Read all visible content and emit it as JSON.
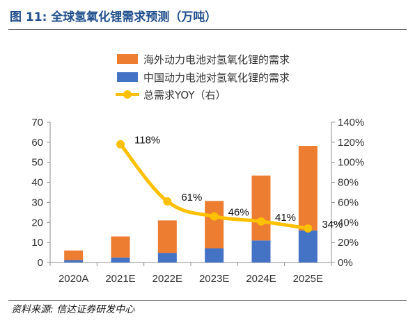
{
  "header": {
    "title": "图 11:  全球氢氧化锂需求预测（万吨）"
  },
  "footer": {
    "source": "资料来源: 信达证券研发中心"
  },
  "chart_data": {
    "type": "bar",
    "categories": [
      "2020A",
      "2021E",
      "2022E",
      "2023E",
      "2024E",
      "2025E"
    ],
    "series": [
      {
        "name": "中国动力电池对氢氧化锂的需求",
        "kind": "bar-stacked",
        "color": "#4472c4",
        "values": [
          1.2,
          2.5,
          4.8,
          7.1,
          11.0,
          16.0
        ]
      },
      {
        "name": "海外动力电池对氢氧化锂的需求",
        "kind": "bar-stacked",
        "color": "#ed7d31",
        "values": [
          4.8,
          10.5,
          16.2,
          23.6,
          32.4,
          42.2
        ]
      },
      {
        "name": "总需求YOY（右）",
        "kind": "line",
        "axis": "right",
        "color": "#ffc000",
        "values": [
          null,
          118,
          61,
          46,
          41,
          34
        ],
        "labels": [
          "",
          "118%",
          "61%",
          "46%",
          "41%",
          "34%"
        ]
      }
    ],
    "y_left": {
      "lim": [
        0,
        70
      ],
      "ticks": [
        "0",
        "10",
        "20",
        "30",
        "40",
        "50",
        "60",
        "70"
      ]
    },
    "y_right": {
      "lim": [
        0,
        140
      ],
      "ticks": [
        "0%",
        "20%",
        "40%",
        "60%",
        "80%",
        "100%",
        "120%",
        "140%"
      ]
    },
    "legend_position": "top",
    "grid": false
  }
}
